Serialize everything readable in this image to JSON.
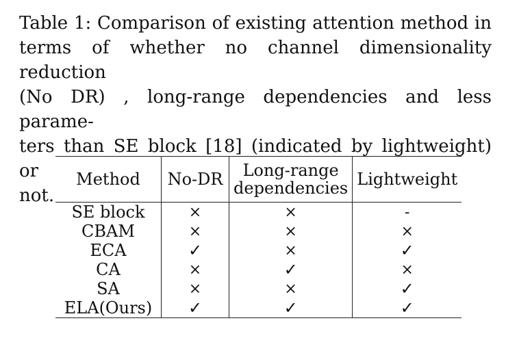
{
  "caption": {
    "lines": [
      "Table 1: Comparison of existing attention method in",
      "terms of whether no channel dimensionality reduction",
      "(No DR) , long-range dependencies and less parame-",
      "ters than SE block [18] (indicated by lightweight) or",
      "not."
    ]
  },
  "table": {
    "headers": {
      "method": "Method",
      "no_dr": "No-DR",
      "long_range_line1": "Long-range",
      "long_range_line2": "dependencies",
      "lightweight": "Lightweight"
    },
    "rows": [
      {
        "method": "SE block",
        "no_dr": "×",
        "long_range": "×",
        "lightweight": "-"
      },
      {
        "method": "CBAM",
        "no_dr": "×",
        "long_range": "×",
        "lightweight": "×"
      },
      {
        "method": "ECA",
        "no_dr": "✓",
        "long_range": "×",
        "lightweight": "✓"
      },
      {
        "method": "CA",
        "no_dr": "×",
        "long_range": "✓",
        "lightweight": "×"
      },
      {
        "method": "SA",
        "no_dr": "×",
        "long_range": "×",
        "lightweight": "✓"
      },
      {
        "method": "ELA(Ours)",
        "no_dr": "✓",
        "long_range": "✓",
        "lightweight": "✓"
      }
    ]
  }
}
